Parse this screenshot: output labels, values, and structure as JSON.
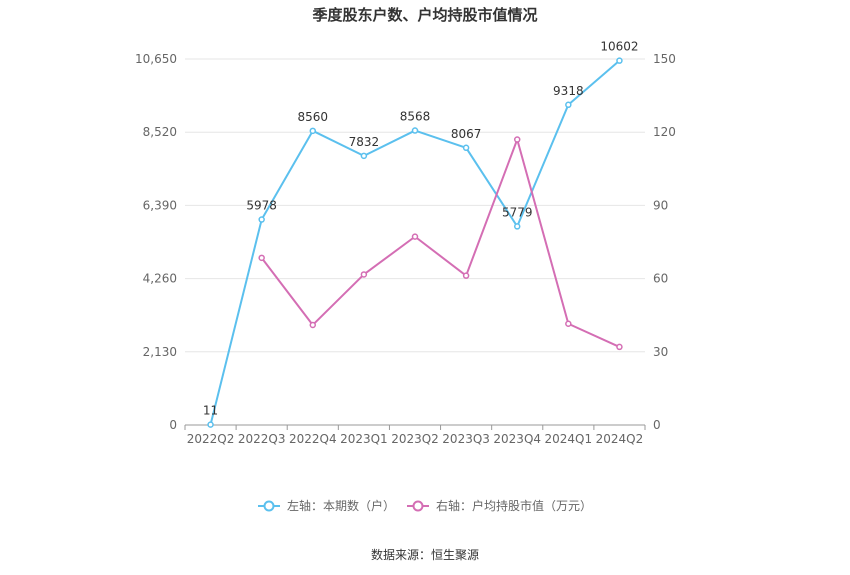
{
  "chart_data": {
    "type": "line",
    "title": "季度股东户数、户均持股市值情况",
    "categories": [
      "2022Q2",
      "2022Q3",
      "2022Q4",
      "2023Q1",
      "2023Q2",
      "2023Q3",
      "2023Q4",
      "2024Q1",
      "2024Q2"
    ],
    "y_left": {
      "ticks": [
        "0",
        "2,130",
        "4,260",
        "6,390",
        "8,520",
        "10,650"
      ],
      "min": 0,
      "max": 10650
    },
    "y_right": {
      "ticks": [
        "0",
        "30",
        "60",
        "90",
        "120",
        "150"
      ],
      "min": 0,
      "max": 150
    },
    "series": [
      {
        "name": "左轴：本期数（户）",
        "axis": "left",
        "color": "#5bc0ee",
        "values": [
          11,
          5978,
          8560,
          7832,
          8568,
          8067,
          5779,
          9318,
          10602
        ],
        "labels": [
          "11",
          "5978",
          "8560",
          "7832",
          "8568",
          "8067",
          "5779",
          "9318",
          "10602"
        ]
      },
      {
        "name": "右轴：户均持股市值（万元）",
        "axis": "right",
        "color": "#d46eb4",
        "values": [
          null,
          68.5,
          41.0,
          61.7,
          77.2,
          61.2,
          117.0,
          41.5,
          32.0
        ]
      }
    ],
    "grid": true,
    "legend_position": "bottom"
  },
  "source": "数据来源：恒生聚源"
}
